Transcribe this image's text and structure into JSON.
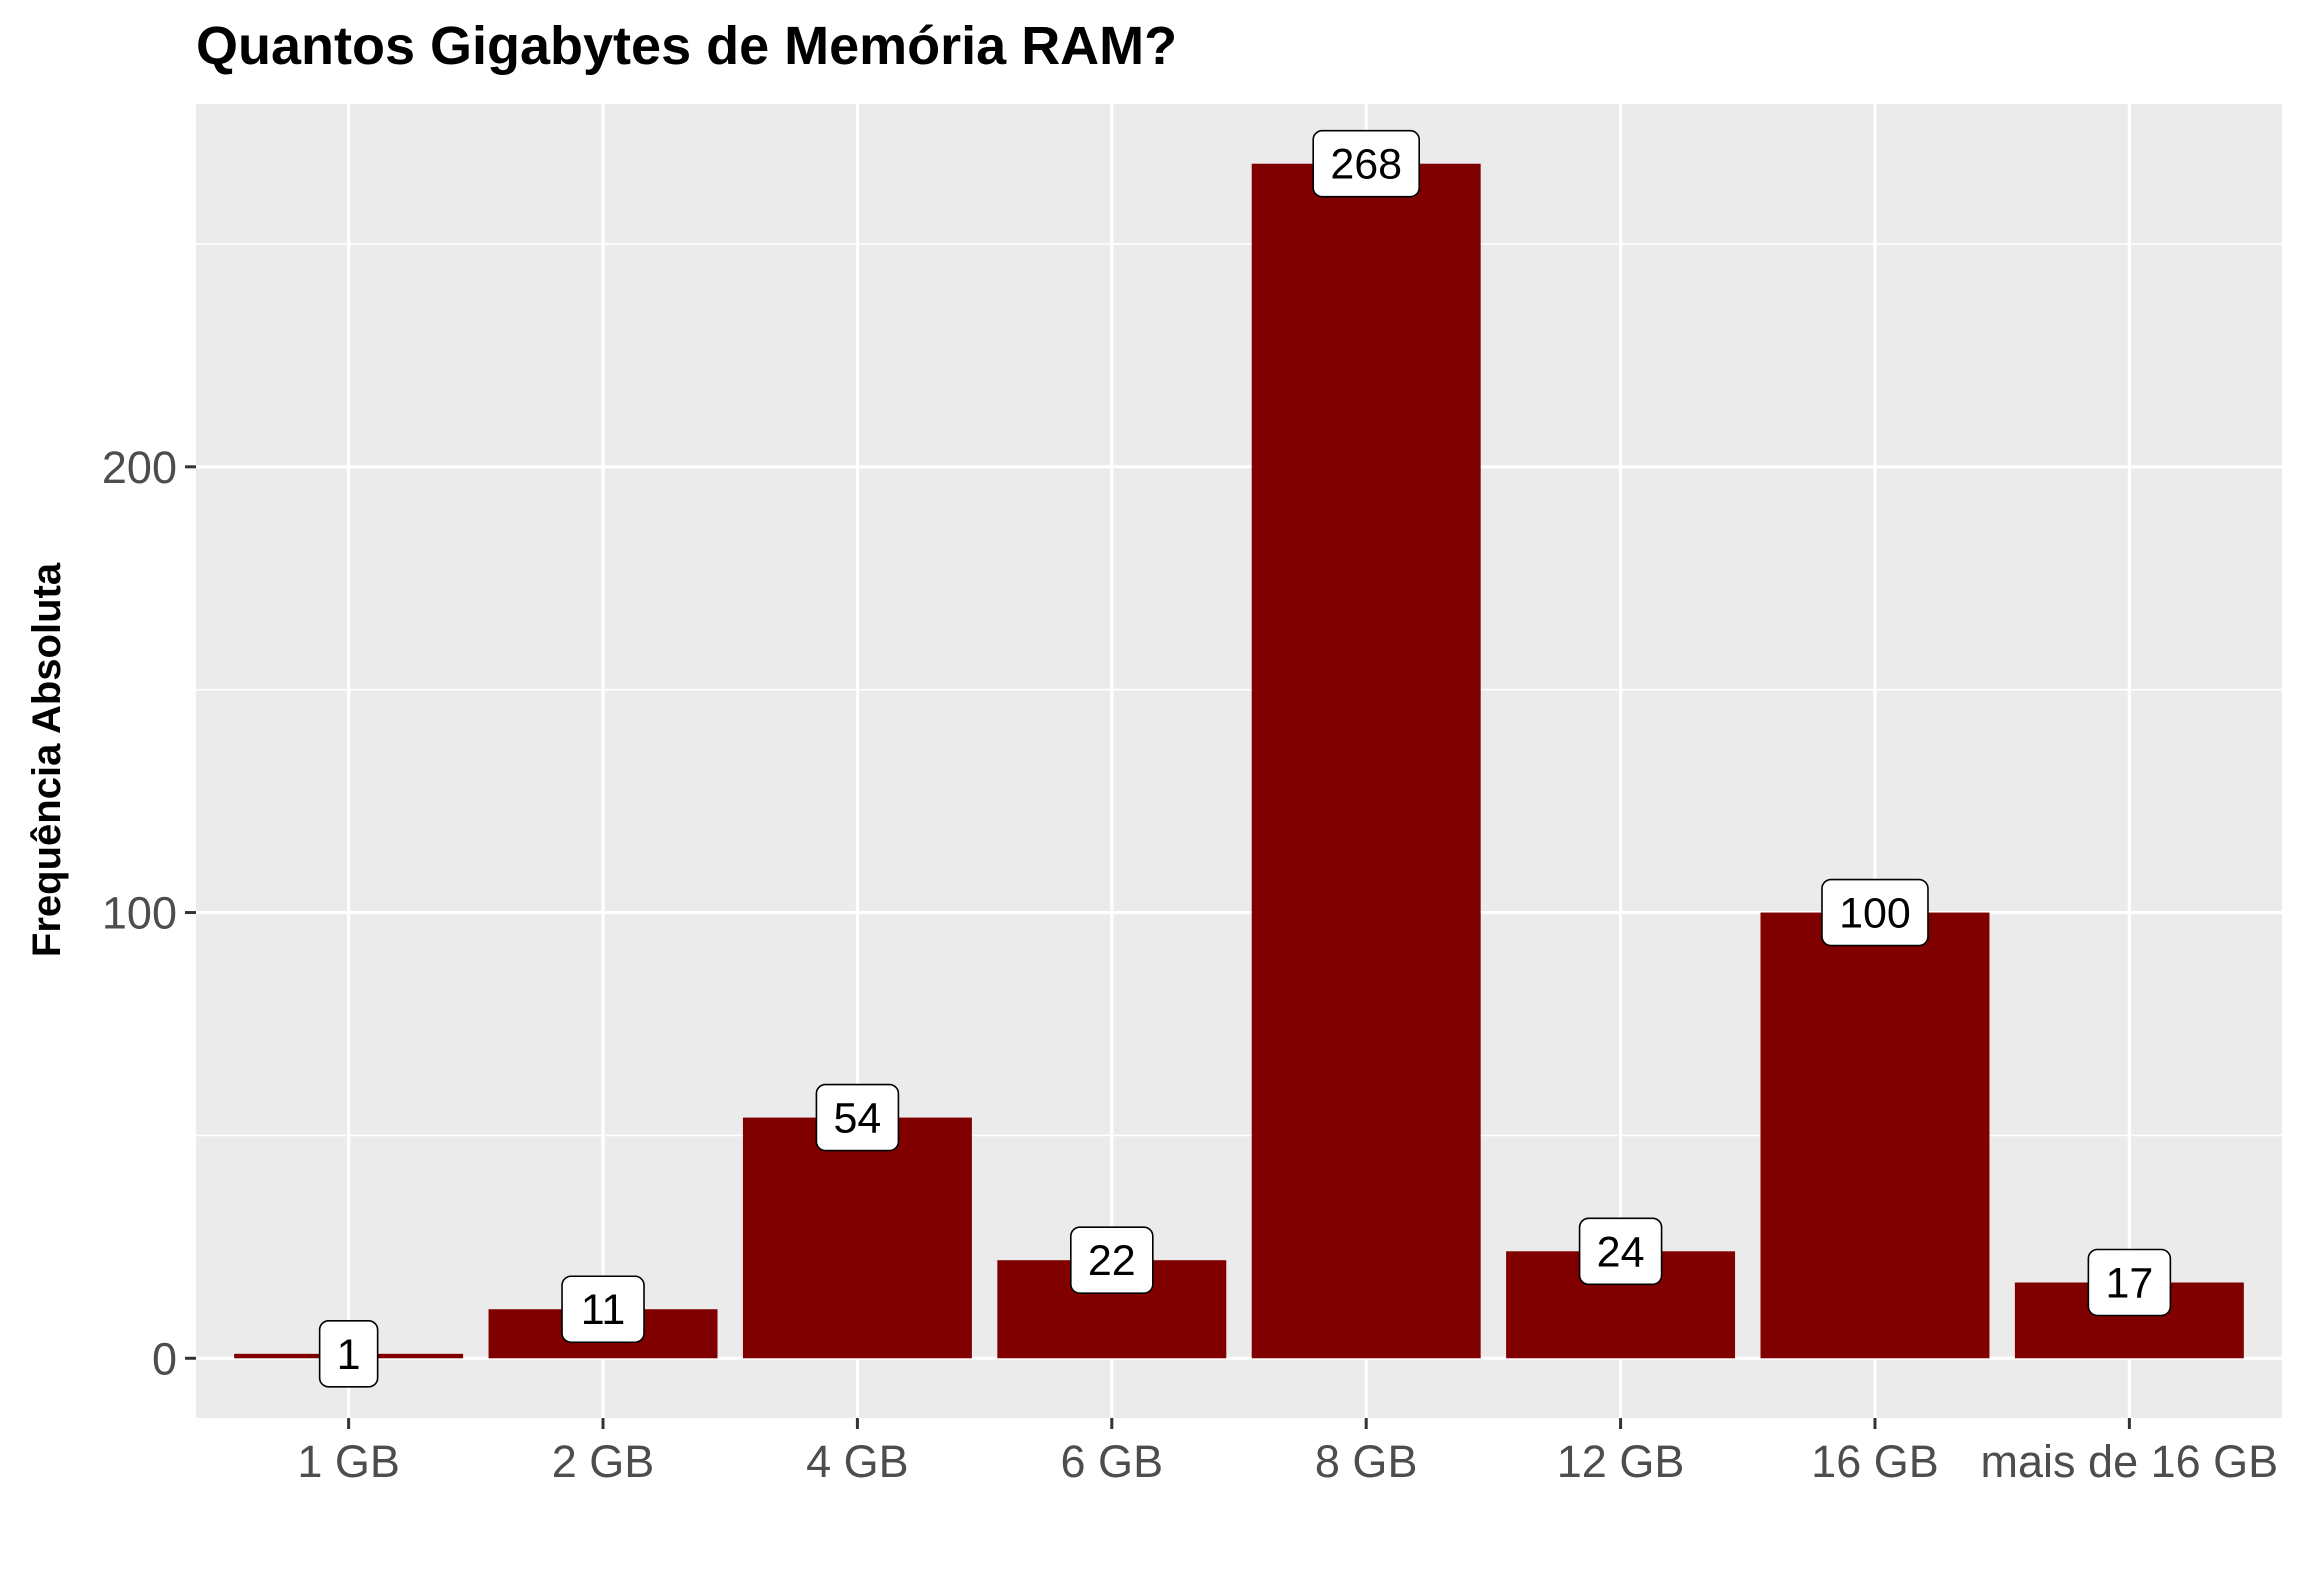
{
  "chart_data": {
    "type": "bar",
    "title": "Quantos Gigabytes de Memória RAM?",
    "xlabel": "",
    "ylabel": "Frequência Absoluta",
    "categories": [
      "1 GB",
      "2 GB",
      "4 GB",
      "6 GB",
      "8 GB",
      "12 GB",
      "16 GB",
      "mais de 16 GB"
    ],
    "values": [
      1,
      11,
      54,
      22,
      268,
      24,
      100,
      17
    ],
    "data_labels": [
      "1",
      "11",
      "54",
      "22",
      "268",
      "24",
      "100",
      "17"
    ],
    "yticks": [
      0,
      100,
      200
    ],
    "ytick_labels": [
      "0",
      "100",
      "200"
    ],
    "ylim": [
      -13.4,
      281.4
    ],
    "grid": true,
    "legend": "none",
    "colors": {
      "bar": "#800000",
      "panel_background": "#ebebeb",
      "grid": "#ffffff",
      "label_fill": "#ffffff",
      "label_border": "#000000",
      "tick_text": "#4d4d4d"
    }
  }
}
